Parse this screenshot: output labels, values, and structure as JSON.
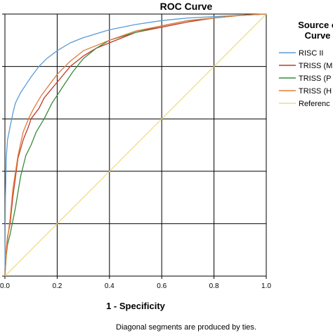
{
  "chart_data": {
    "type": "line",
    "title": "ROC Curve",
    "xlabel": "1 - Specificity",
    "ylabel": "",
    "xlim": [
      0,
      1
    ],
    "ylim": [
      0,
      1
    ],
    "x_ticks": [
      "0.0",
      "0.2",
      "0.4",
      "0.6",
      "0.8",
      "1.0"
    ],
    "grid": true,
    "legend_title": "Source of the Curve",
    "legend_title_lines": [
      "Source o",
      "Curve"
    ],
    "legend_placement": "right",
    "footnote": "Diagonal segments are produced by ties.",
    "series": [
      {
        "name": "RISC II",
        "legend_label": "RISC II",
        "color": "#5b9bd5",
        "x": [
          0,
          0.002,
          0.005,
          0.01,
          0.02,
          0.03,
          0.04,
          0.06,
          0.08,
          0.1,
          0.13,
          0.16,
          0.2,
          0.25,
          0.3,
          0.4,
          0.5,
          0.6,
          0.7,
          0.8,
          0.9,
          0.95,
          1.0
        ],
        "y": [
          0,
          0.3,
          0.45,
          0.52,
          0.57,
          0.62,
          0.66,
          0.7,
          0.73,
          0.76,
          0.8,
          0.83,
          0.86,
          0.89,
          0.91,
          0.94,
          0.96,
          0.975,
          0.985,
          0.99,
          0.995,
          0.998,
          1.0
        ]
      },
      {
        "name": "TRISS (M",
        "legend_label": "TRISS (M",
        "color": "#c0392b",
        "x": [
          0,
          0.005,
          0.01,
          0.02,
          0.03,
          0.05,
          0.07,
          0.09,
          0.1,
          0.13,
          0.15,
          0.2,
          0.25,
          0.3,
          0.35,
          0.4,
          0.5,
          0.6,
          0.7,
          0.8,
          0.9,
          1.0
        ],
        "y": [
          0,
          0.1,
          0.15,
          0.2,
          0.3,
          0.45,
          0.52,
          0.57,
          0.6,
          0.64,
          0.68,
          0.74,
          0.8,
          0.84,
          0.87,
          0.89,
          0.93,
          0.95,
          0.97,
          0.985,
          0.995,
          1.0
        ]
      },
      {
        "name": "TRISS (P",
        "legend_label": "TRISS (P",
        "color": "#3a8a3a",
        "x": [
          0,
          0.005,
          0.01,
          0.02,
          0.04,
          0.06,
          0.08,
          0.1,
          0.12,
          0.15,
          0.18,
          0.22,
          0.26,
          0.3,
          0.35,
          0.4,
          0.5,
          0.6,
          0.7,
          0.8,
          0.9,
          1.0
        ],
        "y": [
          0,
          0.08,
          0.12,
          0.16,
          0.26,
          0.38,
          0.46,
          0.5,
          0.55,
          0.6,
          0.66,
          0.72,
          0.78,
          0.83,
          0.87,
          0.9,
          0.93,
          0.955,
          0.975,
          0.985,
          0.995,
          1.0
        ]
      },
      {
        "name": "TRISS (H",
        "legend_label": "TRISS (H",
        "color": "#e07b39",
        "x": [
          0,
          0.005,
          0.01,
          0.02,
          0.03,
          0.05,
          0.07,
          0.09,
          0.11,
          0.14,
          0.17,
          0.2,
          0.25,
          0.3,
          0.35,
          0.4,
          0.5,
          0.6,
          0.7,
          0.8,
          0.9,
          1.0
        ],
        "y": [
          0,
          0.09,
          0.14,
          0.22,
          0.33,
          0.46,
          0.55,
          0.6,
          0.64,
          0.69,
          0.73,
          0.77,
          0.82,
          0.86,
          0.88,
          0.9,
          0.935,
          0.955,
          0.975,
          0.985,
          0.995,
          1.0
        ]
      },
      {
        "name": "Referenc",
        "legend_label": "Referenc",
        "color": "#e8e08a",
        "x": [
          0,
          1
        ],
        "y": [
          0,
          1
        ]
      }
    ]
  }
}
